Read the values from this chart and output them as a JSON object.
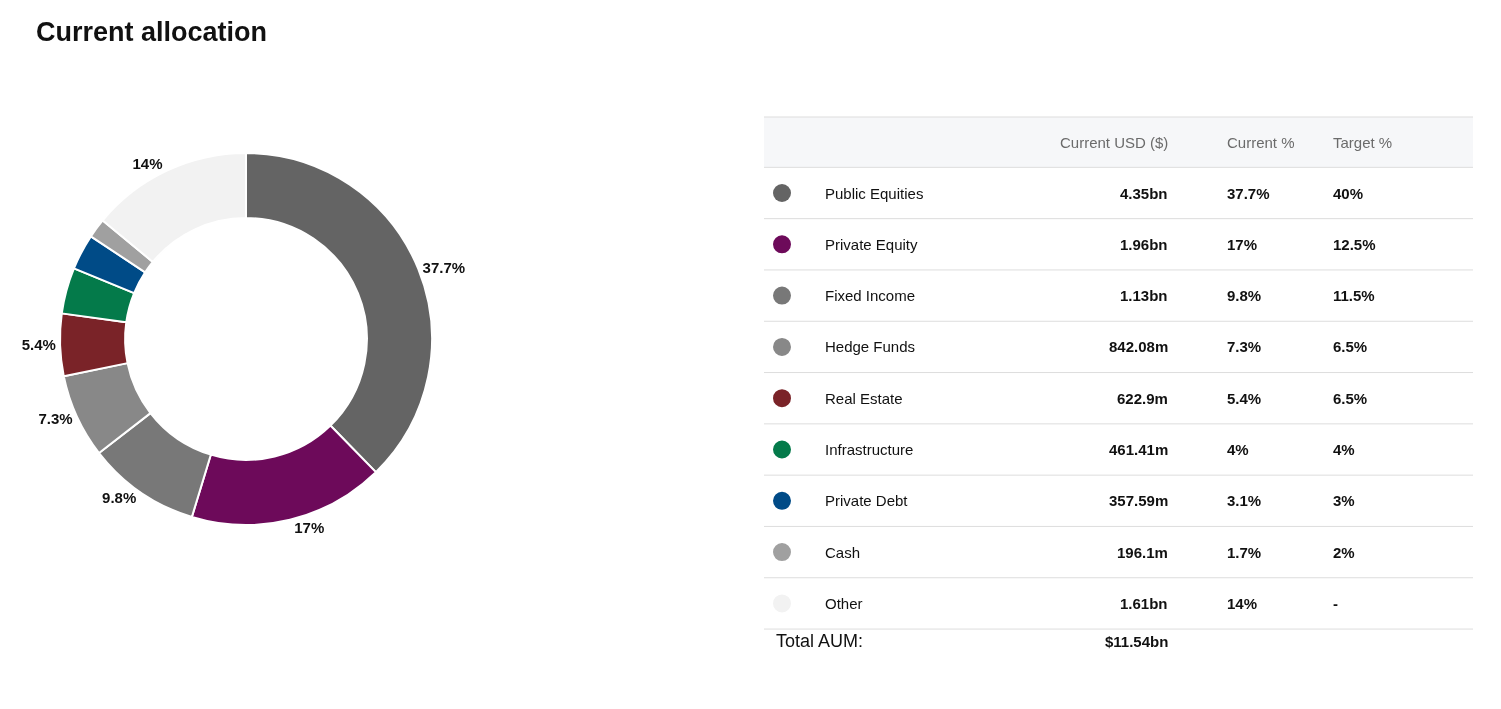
{
  "chart_data": [
    {
      "type": "donut",
      "title": "Current allocation",
      "categories": [
        "Public Equities",
        "Private Equity",
        "Fixed Income",
        "Hedge Funds",
        "Real Estate",
        "Infrastructure",
        "Private Debt",
        "Cash",
        "Other"
      ],
      "values": [
        37.7,
        17,
        9.8,
        7.3,
        5.4,
        4,
        3.1,
        1.7,
        14
      ],
      "value_labels": [
        "37.7%",
        "17%",
        "9.8%",
        "7.3%",
        "5.4%",
        null,
        null,
        null,
        "14%"
      ],
      "colors": [
        "#646464",
        "#6d0a5a",
        "#787878",
        "#888888",
        "#7a2328",
        "#047a4a",
        "#004b87",
        "#a0a0a0",
        "#f2f2f2"
      ],
      "legend": "right"
    },
    {
      "type": "other",
      "annotations": [
        "Current USD ($)",
        "Current %",
        "Target %",
        "4.35bn",
        "37.7%",
        "40%",
        "1.96bn",
        "17%",
        "12.5%",
        "1.13bn",
        "9.8%",
        "11.5%",
        "842.08m",
        "7.3%",
        "6.5%",
        "622.9m",
        "5.4%",
        "6.5%",
        "461.41m",
        "4%",
        "4%",
        "357.59m",
        "3.1%",
        "3%",
        "196.1m",
        "1.7%",
        "2%",
        "1.61bn",
        "14%",
        "-",
        "Total AUM:",
        "$11.54bn"
      ]
    }
  ]
}
